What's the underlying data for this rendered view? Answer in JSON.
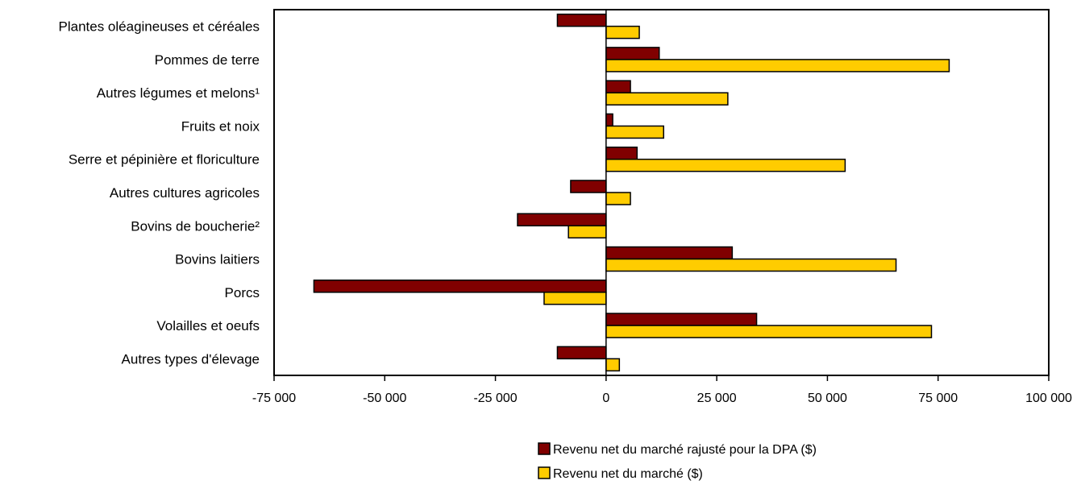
{
  "chart_data": {
    "type": "bar",
    "orientation": "horizontal",
    "categories": [
      "Plantes oléagineuses et céréales",
      "Pommes de terre",
      "Autres légumes et melons¹",
      "Fruits et noix",
      "Serre et pépinière et floriculture",
      "Autres cultures agricoles",
      "Bovins de boucherie²",
      "Bovins laitiers",
      "Porcs",
      "Volailles et oeufs",
      "Autres types d'élevage"
    ],
    "series": [
      {
        "name": "Revenu net du marché rajusté pour la DPA ($)",
        "color": "#800000",
        "values": [
          -11000,
          12000,
          5500,
          1500,
          7000,
          -8000,
          -20000,
          28500,
          -66000,
          34000,
          -11000
        ]
      },
      {
        "name": "Revenu net du marché ($)",
        "color": "#FFCC00",
        "values": [
          7500,
          77500,
          27500,
          13000,
          54000,
          5500,
          -8500,
          65500,
          -14000,
          73500,
          3000
        ]
      }
    ],
    "xlim": [
      -75000,
      100000
    ],
    "xticks": [
      -75000,
      -50000,
      -25000,
      0,
      25000,
      50000,
      75000,
      100000
    ],
    "xtick_labels": [
      "-75 000",
      "-50 000",
      "-25 000",
      "0",
      "25 000",
      "50 000",
      "75 000",
      "100 000"
    ],
    "grid": false,
    "legend_position": "bottom"
  }
}
